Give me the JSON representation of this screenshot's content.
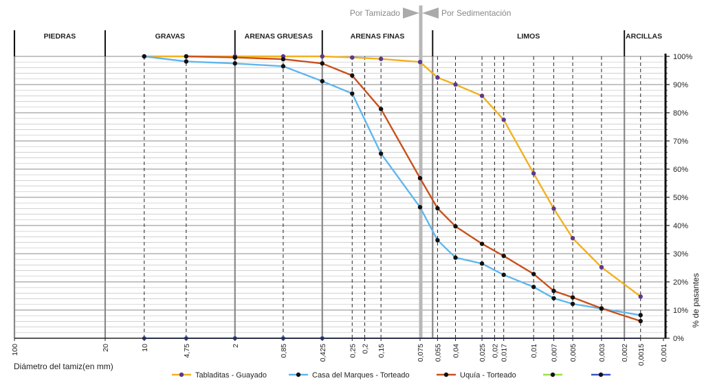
{
  "chart_data": {
    "type": "line",
    "title": "",
    "xlabel": "Diámetro del tamiz(en mm)",
    "ylabel": "% de pasantes",
    "x_scale": "log-reversed",
    "xlim": [
      100,
      0.001
    ],
    "ylim": [
      0,
      100
    ],
    "x_tick_labels": [
      "100",
      "20",
      "10",
      "4,75",
      "2",
      "0,85",
      "0,425",
      "0,25",
      "0,2",
      "0,15",
      "0,075",
      "0,055",
      "0,04",
      "0,025",
      "0,02",
      "0,017",
      "0,01",
      "0,007",
      "0,005",
      "0,003",
      "0,002",
      "0,0015",
      "0,001"
    ],
    "y_tick_labels": [
      "0%",
      "10%",
      "20%",
      "30%",
      "40%",
      "50%",
      "60%",
      "70%",
      "80%",
      "90%",
      "100%"
    ],
    "method_labels": {
      "left": "Por Tamizado",
      "right": "Por Sedimentación"
    },
    "method_boundary": 0.075,
    "soil_bands": [
      {
        "label": "PIEDRAS",
        "from": 100,
        "to": 20
      },
      {
        "label": "GRAVAS",
        "from": 20,
        "to": 2
      },
      {
        "label": "ARENAS GRUESAS",
        "from": 2,
        "to": 0.425
      },
      {
        "label": "ARENAS FINAS",
        "from": 0.425,
        "to": 0.06
      },
      {
        "label": "LIMOS",
        "from": 0.06,
        "to": 0.002
      },
      {
        "label": "ARCILLAS",
        "from": 0.002,
        "to": 0.001
      }
    ],
    "sieve_lines": [
      10,
      4.75,
      0.85,
      0.25,
      0.2,
      0.15,
      0.075,
      0.055,
      0.04,
      0.025,
      0.02,
      0.017,
      0.01,
      0.007,
      0.005,
      0.003,
      0.0015
    ],
    "series": [
      {
        "name": "Tabladitas - Guayado",
        "color": "#f2b01e",
        "marker": "#5a3a8c",
        "x": [
          10,
          4.75,
          2,
          0.85,
          0.425,
          0.25,
          0.15,
          0.075,
          0.055,
          0.04,
          0.025,
          0.017,
          0.01,
          0.007,
          0.005,
          0.003,
          0.0015
        ],
        "y": [
          100,
          100,
          100,
          100,
          100,
          99.6,
          99.1,
          98,
          92.5,
          90,
          86,
          77.5,
          58.5,
          46,
          35.5,
          25.2,
          14.8
        ]
      },
      {
        "name": "Casa del Marques - Torteado",
        "color": "#5fb6ee",
        "marker": "#111111",
        "x": [
          10,
          4.75,
          2,
          0.85,
          0.425,
          0.25,
          0.15,
          0.075,
          0.055,
          0.04,
          0.025,
          0.017,
          0.01,
          0.007,
          0.005,
          0.003,
          0.0015
        ],
        "y": [
          100,
          98.2,
          97.5,
          96.5,
          91.2,
          86.8,
          65.5,
          46.5,
          34.8,
          28.6,
          26.5,
          22.5,
          18.2,
          14.2,
          12.2,
          10.5,
          8.2
        ]
      },
      {
        "name": "Uquía - Torteado",
        "color": "#c8501c",
        "marker": "#111111",
        "x": [
          4.75,
          2,
          0.85,
          0.425,
          0.25,
          0.15,
          0.075,
          0.055,
          0.04,
          0.025,
          0.017,
          0.01,
          0.007,
          0.005,
          0.003,
          0.0015
        ],
        "y": [
          100,
          99.6,
          99,
          97.5,
          93.2,
          81.3,
          56.8,
          46.1,
          39.7,
          33.5,
          29.2,
          22.8,
          16.8,
          14.5,
          10.6,
          6.1
        ]
      },
      {
        "name": "",
        "color": "#9be04a",
        "marker": "#111111",
        "x": [],
        "y": []
      },
      {
        "name": "",
        "color": "#3b57c4",
        "marker": "#111111",
        "x": [],
        "y": []
      }
    ],
    "baseline_points": [
      10,
      4.75,
      2,
      0.85,
      0.425
    ],
    "legend_position": "bottom"
  }
}
